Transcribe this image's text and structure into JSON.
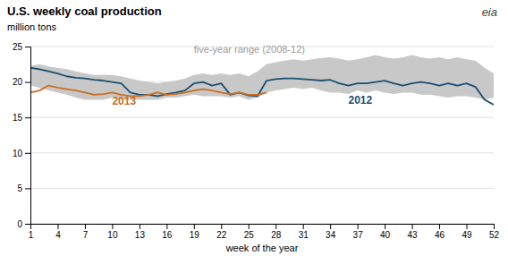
{
  "chart_data": {
    "type": "line",
    "title": "U.S. weekly coal production",
    "y_label": "million tons",
    "x_label": "week of the year",
    "x": [
      1,
      2,
      3,
      4,
      5,
      6,
      7,
      8,
      9,
      10,
      11,
      12,
      13,
      14,
      15,
      16,
      17,
      18,
      19,
      20,
      21,
      22,
      23,
      24,
      25,
      26,
      27,
      28,
      29,
      30,
      31,
      32,
      33,
      34,
      35,
      36,
      37,
      38,
      39,
      40,
      41,
      42,
      43,
      44,
      45,
      46,
      47,
      48,
      49,
      50,
      51,
      52
    ],
    "xlim": [
      1,
      52
    ],
    "xticks": [
      1,
      4,
      7,
      10,
      13,
      16,
      19,
      22,
      25,
      28,
      31,
      34,
      37,
      40,
      43,
      46,
      49,
      52
    ],
    "ylim": [
      0,
      25
    ],
    "yticks": [
      0,
      5,
      10,
      15,
      20,
      25
    ],
    "grid": true,
    "series": [
      {
        "name": "five-year range (2008-12)",
        "type": "area",
        "color": "#c8c8c8",
        "lower": [
          19.5,
          19.2,
          18.8,
          18.5,
          18.2,
          17.8,
          17.5,
          17.5,
          17.5,
          17.8,
          17.5,
          17.5,
          17.5,
          17.5,
          17.5,
          17.8,
          17.8,
          18.0,
          18.2,
          18.0,
          18.0,
          18.0,
          17.8,
          18.0,
          17.5,
          17.8,
          18.5,
          18.8,
          19.0,
          19.2,
          19.0,
          19.2,
          18.8,
          18.5,
          18.5,
          18.3,
          18.8,
          18.5,
          18.8,
          18.5,
          18.3,
          18.5,
          18.5,
          18.2,
          18.2,
          18.0,
          17.8,
          18.0,
          18.0,
          17.8,
          17.5,
          17.8
        ],
        "upper": [
          22.3,
          22.5,
          22.2,
          22.0,
          21.8,
          21.5,
          21.2,
          21.0,
          21.0,
          21.0,
          20.8,
          20.5,
          20.2,
          20.0,
          19.8,
          20.0,
          20.2,
          20.5,
          21.0,
          21.2,
          21.0,
          21.2,
          21.0,
          21.2,
          20.8,
          21.5,
          22.5,
          22.8,
          23.0,
          23.2,
          23.0,
          23.2,
          23.4,
          23.5,
          23.3,
          23.0,
          23.2,
          23.5,
          23.8,
          23.5,
          23.3,
          23.5,
          23.8,
          23.5,
          23.3,
          23.5,
          23.2,
          23.5,
          23.2,
          23.0,
          22.0,
          21.2
        ]
      },
      {
        "name": "2012",
        "type": "line",
        "color": "#1b4f72",
        "values": [
          22.0,
          21.8,
          21.5,
          21.2,
          20.8,
          20.6,
          20.5,
          20.3,
          20.2,
          20.0,
          19.8,
          18.5,
          18.2,
          18.2,
          18.0,
          18.3,
          18.5,
          18.8,
          19.8,
          20.0,
          19.5,
          19.8,
          18.2,
          18.5,
          18.1,
          18.0,
          20.2,
          20.4,
          20.5,
          20.5,
          20.4,
          20.3,
          20.2,
          20.3,
          19.8,
          19.5,
          19.8,
          19.8,
          20.0,
          20.2,
          19.8,
          19.5,
          19.8,
          20.0,
          19.8,
          19.5,
          19.8,
          19.5,
          19.8,
          19.3,
          17.5,
          16.8
        ]
      },
      {
        "name": "2013",
        "type": "line",
        "color": "#ca6f1e",
        "values": [
          18.5,
          18.8,
          19.5,
          19.2,
          19.0,
          18.8,
          18.5,
          18.2,
          18.3,
          18.5,
          18.2,
          18.0,
          18.0,
          18.2,
          18.5,
          18.2,
          18.3,
          18.5,
          18.8,
          19.0,
          18.8,
          18.5,
          18.3,
          18.5,
          18.2,
          18.2,
          18.5,
          null,
          null,
          null,
          null,
          null,
          null,
          null,
          null,
          null,
          null,
          null,
          null,
          null,
          null,
          null,
          null,
          null,
          null,
          null,
          null,
          null,
          null,
          null,
          null,
          null
        ]
      }
    ],
    "annotations": [
      {
        "text": "2013",
        "x": 10,
        "y": 18.2,
        "color": "#ca6f1e"
      },
      {
        "text": "2012",
        "x": 36,
        "y": 18.3,
        "color": "#1b4f72"
      },
      {
        "text": "five-year range (2008-12)",
        "x": 19,
        "y": 23.8,
        "color": "#999999"
      },
      {
        "text": "eia",
        "color": "#444444"
      }
    ]
  }
}
